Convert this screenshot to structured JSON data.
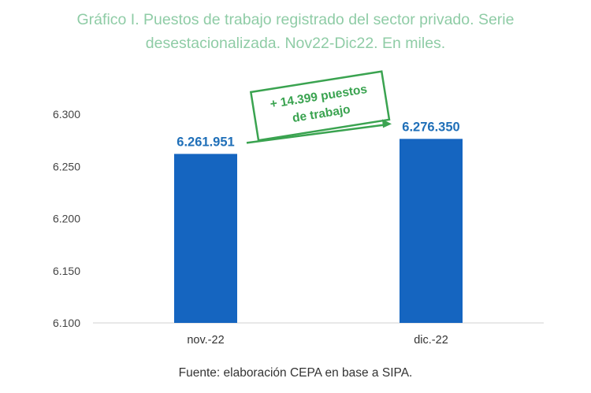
{
  "colors": {
    "title": "#8fcca6",
    "bar": "#1565c0",
    "data_label": "#1f6fb8",
    "annotation": "#3aa350",
    "axis": "#d0d0d0"
  },
  "chart_data": {
    "type": "bar",
    "title_lines": [
      "Gráfico I. Puestos de trabajo registrado del sector privado. Serie",
      "desestacionalizada. Nov22-Dic22. En miles."
    ],
    "categories": [
      "nov.-22",
      "dic.-22"
    ],
    "values": [
      6261.951,
      6276.35
    ],
    "data_labels": [
      "6.261.951",
      "6.276.350"
    ],
    "ylim": [
      6100,
      6300
    ],
    "yticks": [
      6100,
      6150,
      6200,
      6250,
      6300
    ],
    "ytick_labels": [
      "6.100",
      "6.150",
      "6.200",
      "6.250",
      "6.300"
    ],
    "grid": false,
    "annotation": {
      "lines": [
        "+ 14.399 puestos",
        "de trabajo"
      ]
    },
    "source": "Fuente: elaboración CEPA en base a SIPA."
  }
}
